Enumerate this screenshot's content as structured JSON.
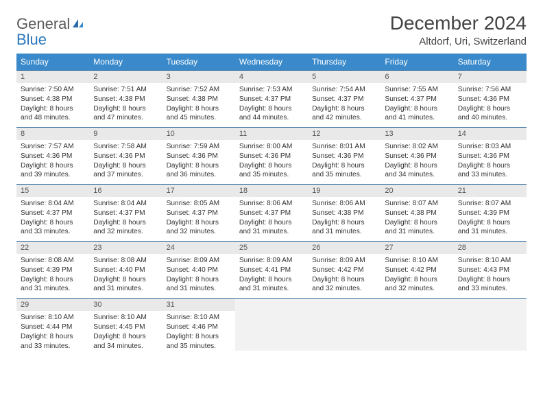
{
  "logo": {
    "text1": "General",
    "text2": "Blue"
  },
  "title": "December 2024",
  "location": "Altdorf, Uri, Switzerland",
  "colors": {
    "header_bg": "#3a8acb",
    "header_text": "#ffffff",
    "row_border": "#2d6a9e",
    "daynum_bg": "#e9e9e9",
    "body_text": "#333333",
    "logo_gray": "#5a5a5a",
    "logo_blue": "#2977bb"
  },
  "day_headers": [
    "Sunday",
    "Monday",
    "Tuesday",
    "Wednesday",
    "Thursday",
    "Friday",
    "Saturday"
  ],
  "weeks": [
    [
      {
        "n": "1",
        "sr": "Sunrise: 7:50 AM",
        "ss": "Sunset: 4:38 PM",
        "d1": "Daylight: 8 hours",
        "d2": "and 48 minutes."
      },
      {
        "n": "2",
        "sr": "Sunrise: 7:51 AM",
        "ss": "Sunset: 4:38 PM",
        "d1": "Daylight: 8 hours",
        "d2": "and 47 minutes."
      },
      {
        "n": "3",
        "sr": "Sunrise: 7:52 AM",
        "ss": "Sunset: 4:38 PM",
        "d1": "Daylight: 8 hours",
        "d2": "and 45 minutes."
      },
      {
        "n": "4",
        "sr": "Sunrise: 7:53 AM",
        "ss": "Sunset: 4:37 PM",
        "d1": "Daylight: 8 hours",
        "d2": "and 44 minutes."
      },
      {
        "n": "5",
        "sr": "Sunrise: 7:54 AM",
        "ss": "Sunset: 4:37 PM",
        "d1": "Daylight: 8 hours",
        "d2": "and 42 minutes."
      },
      {
        "n": "6",
        "sr": "Sunrise: 7:55 AM",
        "ss": "Sunset: 4:37 PM",
        "d1": "Daylight: 8 hours",
        "d2": "and 41 minutes."
      },
      {
        "n": "7",
        "sr": "Sunrise: 7:56 AM",
        "ss": "Sunset: 4:36 PM",
        "d1": "Daylight: 8 hours",
        "d2": "and 40 minutes."
      }
    ],
    [
      {
        "n": "8",
        "sr": "Sunrise: 7:57 AM",
        "ss": "Sunset: 4:36 PM",
        "d1": "Daylight: 8 hours",
        "d2": "and 39 minutes."
      },
      {
        "n": "9",
        "sr": "Sunrise: 7:58 AM",
        "ss": "Sunset: 4:36 PM",
        "d1": "Daylight: 8 hours",
        "d2": "and 37 minutes."
      },
      {
        "n": "10",
        "sr": "Sunrise: 7:59 AM",
        "ss": "Sunset: 4:36 PM",
        "d1": "Daylight: 8 hours",
        "d2": "and 36 minutes."
      },
      {
        "n": "11",
        "sr": "Sunrise: 8:00 AM",
        "ss": "Sunset: 4:36 PM",
        "d1": "Daylight: 8 hours",
        "d2": "and 35 minutes."
      },
      {
        "n": "12",
        "sr": "Sunrise: 8:01 AM",
        "ss": "Sunset: 4:36 PM",
        "d1": "Daylight: 8 hours",
        "d2": "and 35 minutes."
      },
      {
        "n": "13",
        "sr": "Sunrise: 8:02 AM",
        "ss": "Sunset: 4:36 PM",
        "d1": "Daylight: 8 hours",
        "d2": "and 34 minutes."
      },
      {
        "n": "14",
        "sr": "Sunrise: 8:03 AM",
        "ss": "Sunset: 4:36 PM",
        "d1": "Daylight: 8 hours",
        "d2": "and 33 minutes."
      }
    ],
    [
      {
        "n": "15",
        "sr": "Sunrise: 8:04 AM",
        "ss": "Sunset: 4:37 PM",
        "d1": "Daylight: 8 hours",
        "d2": "and 33 minutes."
      },
      {
        "n": "16",
        "sr": "Sunrise: 8:04 AM",
        "ss": "Sunset: 4:37 PM",
        "d1": "Daylight: 8 hours",
        "d2": "and 32 minutes."
      },
      {
        "n": "17",
        "sr": "Sunrise: 8:05 AM",
        "ss": "Sunset: 4:37 PM",
        "d1": "Daylight: 8 hours",
        "d2": "and 32 minutes."
      },
      {
        "n": "18",
        "sr": "Sunrise: 8:06 AM",
        "ss": "Sunset: 4:37 PM",
        "d1": "Daylight: 8 hours",
        "d2": "and 31 minutes."
      },
      {
        "n": "19",
        "sr": "Sunrise: 8:06 AM",
        "ss": "Sunset: 4:38 PM",
        "d1": "Daylight: 8 hours",
        "d2": "and 31 minutes."
      },
      {
        "n": "20",
        "sr": "Sunrise: 8:07 AM",
        "ss": "Sunset: 4:38 PM",
        "d1": "Daylight: 8 hours",
        "d2": "and 31 minutes."
      },
      {
        "n": "21",
        "sr": "Sunrise: 8:07 AM",
        "ss": "Sunset: 4:39 PM",
        "d1": "Daylight: 8 hours",
        "d2": "and 31 minutes."
      }
    ],
    [
      {
        "n": "22",
        "sr": "Sunrise: 8:08 AM",
        "ss": "Sunset: 4:39 PM",
        "d1": "Daylight: 8 hours",
        "d2": "and 31 minutes."
      },
      {
        "n": "23",
        "sr": "Sunrise: 8:08 AM",
        "ss": "Sunset: 4:40 PM",
        "d1": "Daylight: 8 hours",
        "d2": "and 31 minutes."
      },
      {
        "n": "24",
        "sr": "Sunrise: 8:09 AM",
        "ss": "Sunset: 4:40 PM",
        "d1": "Daylight: 8 hours",
        "d2": "and 31 minutes."
      },
      {
        "n": "25",
        "sr": "Sunrise: 8:09 AM",
        "ss": "Sunset: 4:41 PM",
        "d1": "Daylight: 8 hours",
        "d2": "and 31 minutes."
      },
      {
        "n": "26",
        "sr": "Sunrise: 8:09 AM",
        "ss": "Sunset: 4:42 PM",
        "d1": "Daylight: 8 hours",
        "d2": "and 32 minutes."
      },
      {
        "n": "27",
        "sr": "Sunrise: 8:10 AM",
        "ss": "Sunset: 4:42 PM",
        "d1": "Daylight: 8 hours",
        "d2": "and 32 minutes."
      },
      {
        "n": "28",
        "sr": "Sunrise: 8:10 AM",
        "ss": "Sunset: 4:43 PM",
        "d1": "Daylight: 8 hours",
        "d2": "and 33 minutes."
      }
    ],
    [
      {
        "n": "29",
        "sr": "Sunrise: 8:10 AM",
        "ss": "Sunset: 4:44 PM",
        "d1": "Daylight: 8 hours",
        "d2": "and 33 minutes."
      },
      {
        "n": "30",
        "sr": "Sunrise: 8:10 AM",
        "ss": "Sunset: 4:45 PM",
        "d1": "Daylight: 8 hours",
        "d2": "and 34 minutes."
      },
      {
        "n": "31",
        "sr": "Sunrise: 8:10 AM",
        "ss": "Sunset: 4:46 PM",
        "d1": "Daylight: 8 hours",
        "d2": "and 35 minutes."
      },
      {
        "empty": true
      },
      {
        "empty": true
      },
      {
        "empty": true
      },
      {
        "empty": true
      }
    ]
  ]
}
